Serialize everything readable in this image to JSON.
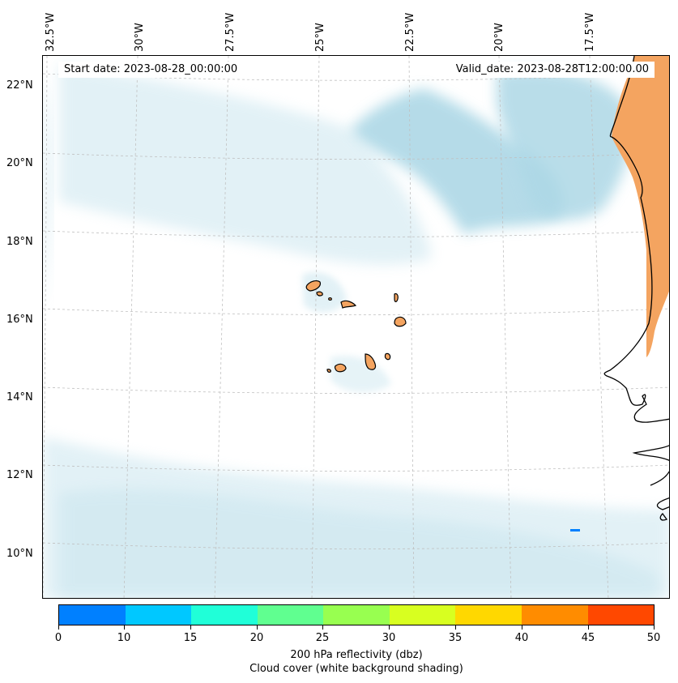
{
  "map": {
    "start_label": "Start date: 2023-08-28_00:00:00",
    "valid_label": "Valid_date: 2023-08-28T12:00:00.00",
    "lon_labels": [
      "32.5°W",
      "30°W",
      "27.5°W",
      "25°W",
      "22.5°W",
      "20°W",
      "17.5°W"
    ],
    "lat_labels": [
      "22°N",
      "20°N",
      "18°N",
      "16°N",
      "14°N",
      "12°N",
      "10°N"
    ],
    "land_color": "#f4a460",
    "cloud_color": "#add8e6"
  },
  "colorbar": {
    "ticks": [
      "0",
      "10",
      "15",
      "20",
      "25",
      "30",
      "35",
      "40",
      "45",
      "50"
    ],
    "colors": [
      "#0080ff",
      "#00c8ff",
      "#20ffd8",
      "#60ff90",
      "#98ff50",
      "#d8ff20",
      "#ffd800",
      "#ff8c00",
      "#ff4800"
    ],
    "label_line1": "200 hPa reflectivity (dbz)",
    "label_line2": "Cloud cover (white background shading)"
  }
}
